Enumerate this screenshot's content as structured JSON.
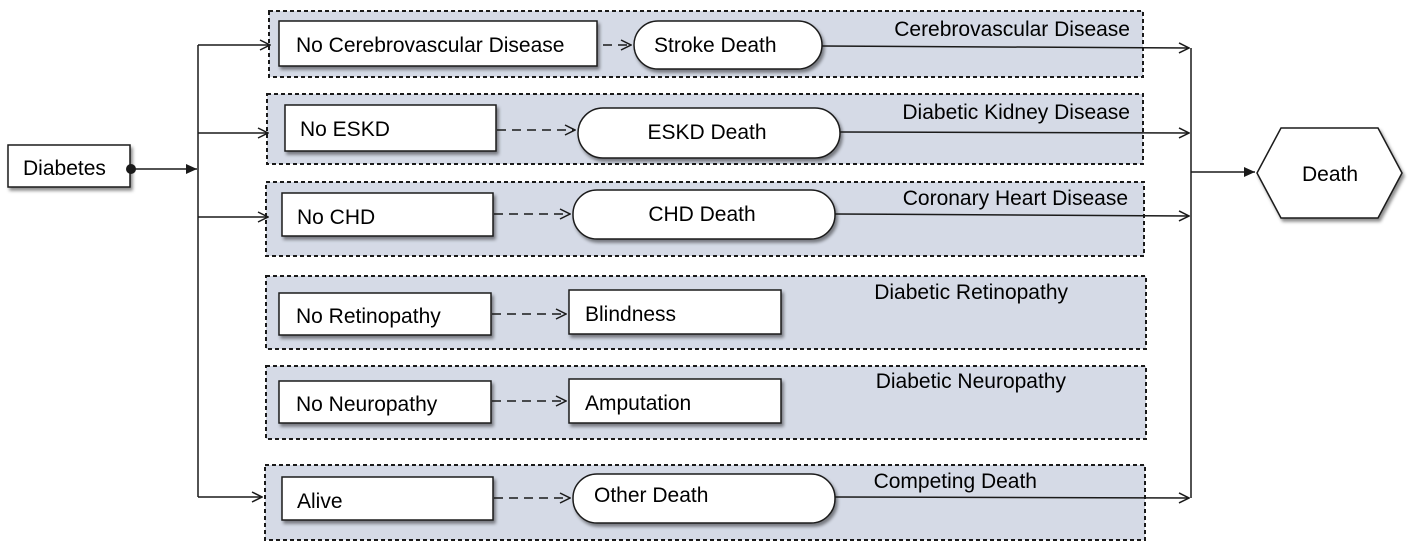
{
  "source": {
    "label": "Diabetes"
  },
  "sink": {
    "label": "Death"
  },
  "panels": [
    {
      "title": "Cerebrovascular Disease",
      "state": "No Cerebrovascular Disease",
      "outcome": "Stroke Death"
    },
    {
      "title": "Diabetic Kidney Disease",
      "state": "No ESKD",
      "outcome": "ESKD Death"
    },
    {
      "title": "Coronary Heart Disease",
      "state": "No CHD",
      "outcome": "CHD Death"
    },
    {
      "title": "Diabetic Retinopathy",
      "state": "No Retinopathy",
      "outcome": "Blindness"
    },
    {
      "title": "Diabetic Neuropathy",
      "state": "No Neuropathy",
      "outcome": "Amputation"
    },
    {
      "title": "Competing Death",
      "state": "Alive",
      "outcome": "Other Death"
    }
  ]
}
